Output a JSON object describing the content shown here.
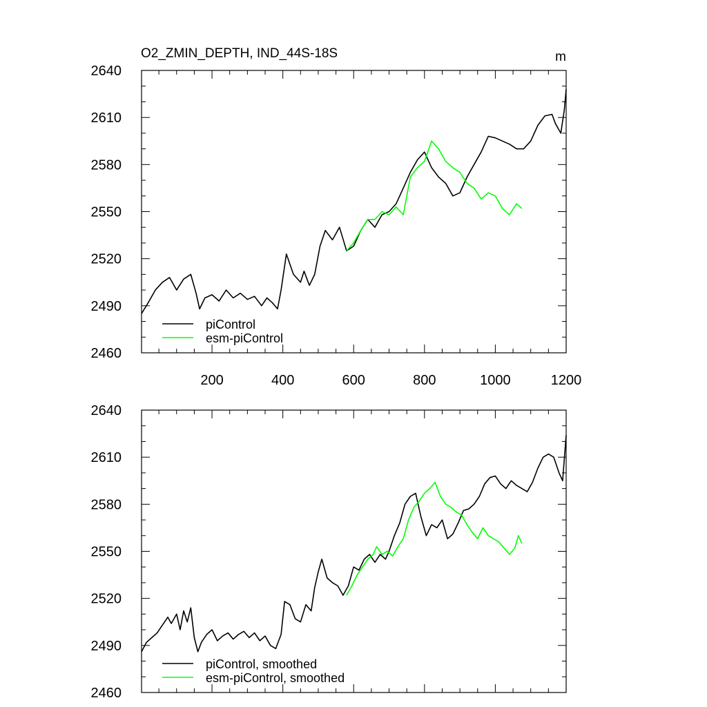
{
  "chart_data": [
    {
      "type": "line",
      "title": "O2_ZMIN_DEPTH, IND_44S-18S",
      "units": "m",
      "xlim": [
        1,
        1200
      ],
      "ylim": [
        2460,
        2640
      ],
      "x_ticks": [
        200,
        400,
        600,
        800,
        1000,
        1200
      ],
      "y_ticks": [
        2460,
        2490,
        2520,
        2550,
        2580,
        2610,
        2640
      ],
      "grid": false,
      "legend_position": "bottom-left",
      "series": [
        {
          "name": "piControl",
          "color": "#000000",
          "x": [
            1,
            20,
            40,
            60,
            80,
            100,
            120,
            140,
            155,
            165,
            180,
            200,
            220,
            240,
            260,
            280,
            300,
            320,
            340,
            355,
            370,
            385,
            395,
            410,
            430,
            450,
            460,
            475,
            490,
            505,
            520,
            540,
            560,
            580,
            600,
            620,
            640,
            660,
            680,
            700,
            720,
            740,
            760,
            780,
            800,
            820,
            840,
            860,
            880,
            900,
            920,
            940,
            960,
            980,
            1000,
            1020,
            1040,
            1060,
            1080,
            1100,
            1120,
            1140,
            1160,
            1170,
            1185,
            1195,
            1200
          ],
          "y": [
            2485,
            2492,
            2500,
            2505,
            2508,
            2500,
            2507,
            2510,
            2498,
            2488,
            2495,
            2497,
            2493,
            2500,
            2495,
            2498,
            2494,
            2496,
            2490,
            2495,
            2492,
            2488,
            2500,
            2523,
            2510,
            2505,
            2512,
            2503,
            2510,
            2528,
            2538,
            2532,
            2540,
            2525,
            2528,
            2538,
            2545,
            2540,
            2548,
            2550,
            2555,
            2565,
            2575,
            2583,
            2588,
            2578,
            2572,
            2568,
            2560,
            2562,
            2572,
            2580,
            2588,
            2598,
            2597,
            2595,
            2593,
            2590,
            2590,
            2595,
            2605,
            2611,
            2612,
            2606,
            2600,
            2615,
            2628
          ]
        },
        {
          "name": "esm-piControl",
          "color": "#00ff00",
          "x": [
            580,
            600,
            620,
            640,
            660,
            680,
            700,
            720,
            740,
            760,
            780,
            800,
            820,
            840,
            860,
            880,
            900,
            920,
            940,
            960,
            980,
            1000,
            1020,
            1040,
            1060,
            1075
          ],
          "y": [
            2525,
            2530,
            2538,
            2545,
            2545,
            2550,
            2548,
            2553,
            2548,
            2572,
            2578,
            2582,
            2595,
            2590,
            2582,
            2578,
            2575,
            2568,
            2565,
            2558,
            2562,
            2560,
            2552,
            2548,
            2555,
            2552
          ]
        }
      ]
    },
    {
      "type": "line",
      "xlim": [
        1,
        1200
      ],
      "ylim": [
        2460,
        2640
      ],
      "y_ticks": [
        2460,
        2490,
        2520,
        2550,
        2580,
        2610,
        2640
      ],
      "grid": false,
      "legend_position": "bottom-left",
      "series": [
        {
          "name": "piControl, smoothed",
          "color": "#000000",
          "x": [
            1,
            15,
            30,
            45,
            60,
            75,
            85,
            100,
            110,
            120,
            130,
            140,
            150,
            160,
            170,
            185,
            200,
            215,
            230,
            245,
            260,
            275,
            290,
            305,
            320,
            335,
            350,
            365,
            380,
            395,
            405,
            420,
            435,
            450,
            465,
            480,
            490,
            500,
            510,
            525,
            540,
            555,
            570,
            585,
            600,
            615,
            630,
            645,
            660,
            675,
            690,
            700,
            715,
            730,
            745,
            760,
            775,
            790,
            805,
            820,
            835,
            850,
            865,
            880,
            895,
            910,
            925,
            940,
            955,
            970,
            985,
            1000,
            1015,
            1030,
            1045,
            1060,
            1075,
            1090,
            1105,
            1120,
            1135,
            1150,
            1165,
            1180,
            1190,
            1200
          ],
          "y": [
            2486,
            2492,
            2495,
            2498,
            2503,
            2508,
            2504,
            2510,
            2500,
            2512,
            2505,
            2514,
            2495,
            2486,
            2492,
            2497,
            2500,
            2493,
            2496,
            2498,
            2494,
            2497,
            2499,
            2495,
            2498,
            2493,
            2496,
            2490,
            2488,
            2497,
            2518,
            2516,
            2507,
            2505,
            2516,
            2512,
            2527,
            2537,
            2545,
            2533,
            2530,
            2528,
            2522,
            2528,
            2540,
            2538,
            2545,
            2548,
            2543,
            2548,
            2545,
            2550,
            2560,
            2568,
            2580,
            2585,
            2587,
            2572,
            2560,
            2567,
            2565,
            2570,
            2558,
            2561,
            2568,
            2576,
            2577,
            2580,
            2585,
            2593,
            2597,
            2598,
            2593,
            2590,
            2595,
            2592,
            2590,
            2588,
            2594,
            2603,
            2610,
            2612,
            2610,
            2600,
            2595,
            2624
          ]
        },
        {
          "name": "esm-piControl, smoothed",
          "color": "#00ff00",
          "x": [
            580,
            595,
            610,
            625,
            640,
            655,
            665,
            680,
            695,
            710,
            725,
            740,
            755,
            770,
            785,
            800,
            815,
            830,
            845,
            860,
            875,
            890,
            905,
            920,
            935,
            950,
            965,
            980,
            995,
            1010,
            1025,
            1040,
            1055,
            1065,
            1075
          ],
          "y": [
            2522,
            2528,
            2535,
            2540,
            2545,
            2548,
            2553,
            2548,
            2550,
            2547,
            2553,
            2558,
            2570,
            2578,
            2582,
            2587,
            2590,
            2594,
            2585,
            2580,
            2578,
            2575,
            2573,
            2567,
            2562,
            2558,
            2565,
            2560,
            2558,
            2556,
            2552,
            2548,
            2552,
            2560,
            2555
          ]
        }
      ]
    }
  ]
}
